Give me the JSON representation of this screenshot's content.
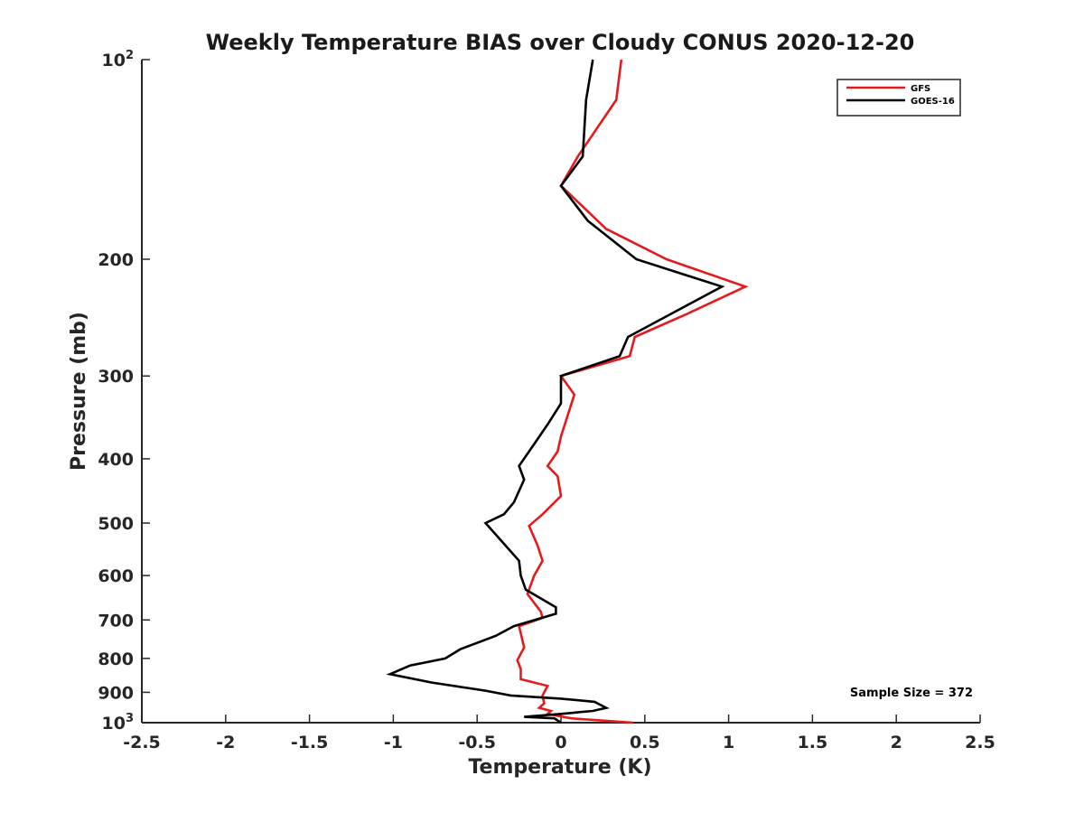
{
  "chart_data": {
    "type": "line",
    "title": "Weekly Temperature BIAS over Cloudy CONUS 2020-12-20",
    "xlabel": "Temperature (K)",
    "ylabel": "Pressure (mb)",
    "xlim": [
      -2.5,
      2.5
    ],
    "ylim": [
      100,
      1000
    ],
    "y_scale": "log",
    "y_reversed": true,
    "grid": false,
    "legend_position": "top-right",
    "x_ticks": [
      -2.5,
      -2,
      -1.5,
      -1,
      -0.5,
      0,
      0.5,
      1,
      1.5,
      2,
      2.5
    ],
    "x_tick_labels": [
      "-2.5",
      "-2",
      "-1.5",
      "-1",
      "-0.5",
      "0",
      "0.5",
      "1",
      "1.5",
      "2",
      "2.5"
    ],
    "y_ticks": [
      100,
      200,
      300,
      400,
      500,
      600,
      700,
      800,
      900,
      1000
    ],
    "y_tick_labels": [
      {
        "value": 100,
        "base": "10",
        "exp": "2"
      },
      {
        "value": 200,
        "base": "200",
        "exp": ""
      },
      {
        "value": 300,
        "base": "300",
        "exp": ""
      },
      {
        "value": 400,
        "base": "400",
        "exp": ""
      },
      {
        "value": 500,
        "base": "500",
        "exp": ""
      },
      {
        "value": 600,
        "base": "600",
        "exp": ""
      },
      {
        "value": 700,
        "base": "700",
        "exp": ""
      },
      {
        "value": 800,
        "base": "800",
        "exp": ""
      },
      {
        "value": 900,
        "base": "900",
        "exp": ""
      },
      {
        "value": 1000,
        "base": "10",
        "exp": "3"
      }
    ],
    "series": [
      {
        "name": "GFS",
        "color": "#e41a1c",
        "points": [
          [
            0.36,
            100
          ],
          [
            0.33,
            115
          ],
          [
            0.1,
            140
          ],
          [
            0.0,
            155
          ],
          [
            0.27,
            180
          ],
          [
            0.63,
            200
          ],
          [
            1.1,
            220
          ],
          [
            0.75,
            242
          ],
          [
            0.44,
            262
          ],
          [
            0.41,
            280
          ],
          [
            0.0,
            300
          ],
          [
            0.08,
            320
          ],
          [
            0.0,
            370
          ],
          [
            -0.02,
            390
          ],
          [
            -0.08,
            410
          ],
          [
            -0.02,
            425
          ],
          [
            0.0,
            455
          ],
          [
            -0.11,
            485
          ],
          [
            -0.19,
            505
          ],
          [
            -0.14,
            540
          ],
          [
            -0.11,
            570
          ],
          [
            -0.16,
            600
          ],
          [
            -0.2,
            640
          ],
          [
            -0.12,
            680
          ],
          [
            -0.11,
            695
          ],
          [
            -0.25,
            715
          ],
          [
            -0.22,
            770
          ],
          [
            -0.26,
            805
          ],
          [
            -0.24,
            830
          ],
          [
            -0.24,
            860
          ],
          [
            -0.08,
            880
          ],
          [
            -0.11,
            910
          ],
          [
            -0.1,
            935
          ],
          [
            -0.13,
            950
          ],
          [
            -0.06,
            960
          ],
          [
            -0.08,
            970
          ],
          [
            0.06,
            985
          ],
          [
            0.43,
            1000
          ]
        ]
      },
      {
        "name": "GOES-16",
        "color": "#000000",
        "points": [
          [
            0.19,
            100
          ],
          [
            0.15,
            115
          ],
          [
            0.13,
            140
          ],
          [
            0.0,
            155
          ],
          [
            0.16,
            175
          ],
          [
            0.45,
            200
          ],
          [
            0.96,
            220
          ],
          [
            0.68,
            240
          ],
          [
            0.4,
            262
          ],
          [
            0.35,
            280
          ],
          [
            0.0,
            300
          ],
          [
            0.0,
            330
          ],
          [
            -0.08,
            355
          ],
          [
            -0.16,
            380
          ],
          [
            -0.25,
            410
          ],
          [
            -0.22,
            430
          ],
          [
            -0.28,
            465
          ],
          [
            -0.34,
            485
          ],
          [
            -0.45,
            500
          ],
          [
            -0.39,
            520
          ],
          [
            -0.25,
            570
          ],
          [
            -0.24,
            600
          ],
          [
            -0.21,
            630
          ],
          [
            -0.03,
            670
          ],
          [
            -0.03,
            685
          ],
          [
            -0.28,
            715
          ],
          [
            -0.39,
            740
          ],
          [
            -0.6,
            775
          ],
          [
            -0.69,
            800
          ],
          [
            -0.9,
            820
          ],
          [
            -1.02,
            845
          ],
          [
            -0.77,
            870
          ],
          [
            -0.45,
            895
          ],
          [
            -0.3,
            910
          ],
          [
            0.0,
            920
          ],
          [
            0.2,
            930
          ],
          [
            0.27,
            950
          ],
          [
            0.19,
            960
          ],
          [
            0.0,
            970
          ],
          [
            -0.22,
            980
          ],
          [
            -0.04,
            985
          ],
          [
            0.0,
            1000
          ]
        ]
      }
    ],
    "annotation": "Sample Size = 372"
  }
}
